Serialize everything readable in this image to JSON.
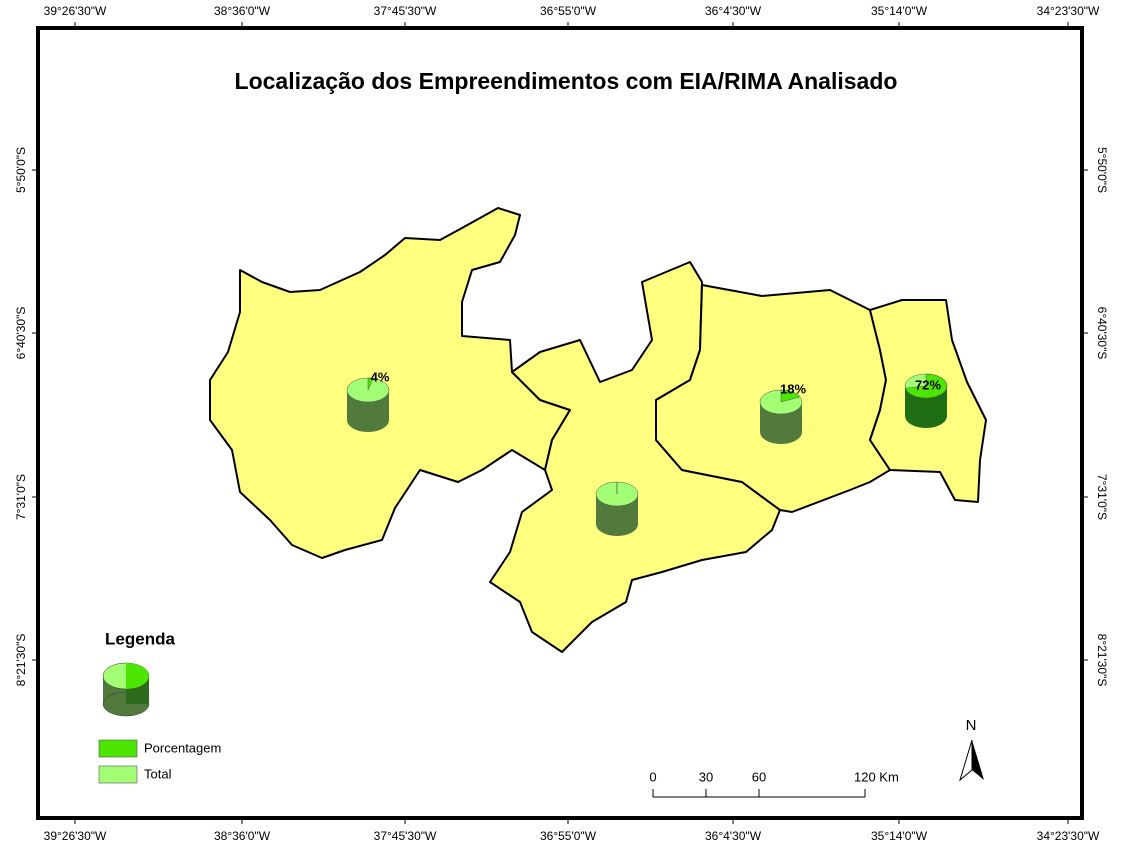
{
  "title": "Localização dos Empreendimentos com EIA/RIMA Analisado",
  "longitudes": [
    "39°26'30\"W",
    "38°36'0\"W",
    "37°45'30\"W",
    "36°55'0\"W",
    "36°4'30\"W",
    "35°14'0\"W",
    "34°23'30\"W"
  ],
  "latitudes": [
    "5°50'0\"S",
    "6°40'30\"S",
    "7°31'0\"S",
    "8°21'30\"S"
  ],
  "pies": [
    {
      "value": 4,
      "label": "4%"
    },
    {
      "value": 0
    },
    {
      "value": 18,
      "label": "18%"
    },
    {
      "value": 72,
      "label": "72%"
    }
  ],
  "legend": {
    "title": "Legenda",
    "items": [
      {
        "label": "Porcentagem",
        "color": "#4ce600"
      },
      {
        "label": "Total",
        "color": "#a3ff73"
      }
    ]
  },
  "scale_bar": {
    "ticks": [
      0,
      30,
      60,
      {
        "value": 120,
        "label": "120 Km"
      }
    ]
  },
  "north": "N"
}
